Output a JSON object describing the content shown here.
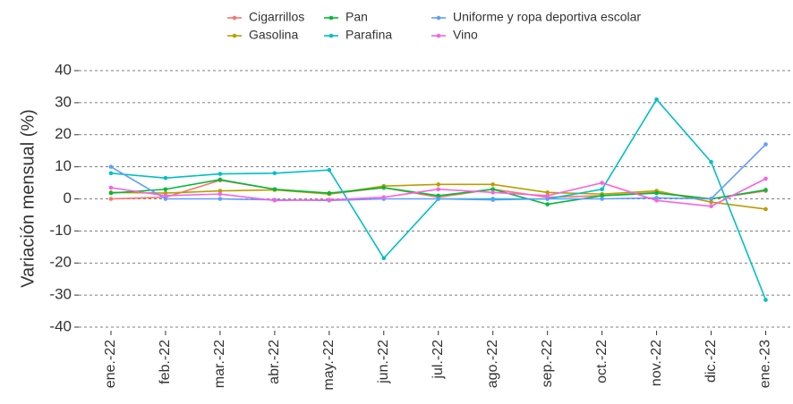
{
  "chart_data": {
    "type": "line",
    "y_label": "Variación mensual (%)",
    "categories": [
      "ene.-22",
      "feb.-22",
      "mar.-22",
      "abr.-22",
      "may.-22",
      "jun.-22",
      "jul.-22",
      "ago.-22",
      "sep.-22",
      "oct.-22",
      "nov.-22",
      "dic.-22",
      "ene.-23"
    ],
    "series": [
      {
        "name": "Cigarrillos",
        "color": "#F8766D",
        "values": [
          0,
          0.5,
          5.8,
          3,
          1.5,
          3.5,
          0.5,
          3,
          0.5,
          1,
          2,
          0,
          2.5
        ]
      },
      {
        "name": "Gasolina",
        "color": "#B79F00",
        "values": [
          2,
          1.8,
          2.5,
          2.8,
          1.5,
          4,
          4.5,
          4.5,
          2,
          1.5,
          2.5,
          -1,
          -3.2
        ]
      },
      {
        "name": "Pan",
        "color": "#00BA38",
        "values": [
          1.8,
          3,
          6,
          3,
          1.8,
          3.5,
          1,
          3,
          -1.7,
          1,
          1.8,
          0,
          2.8
        ]
      },
      {
        "name": "Parafina",
        "color": "#00BFC4",
        "values": [
          8,
          6.5,
          7.8,
          8,
          9,
          -18.5,
          0,
          0,
          0,
          3,
          31,
          11.5,
          -31.5
        ]
      },
      {
        "name": "Uniforme y ropa deportiva escolar",
        "color": "#619CFF",
        "values": [
          10,
          0,
          0,
          -0.3,
          -0.5,
          0,
          0,
          -0.3,
          0,
          0,
          0.3,
          0,
          17
        ]
      },
      {
        "name": "Vino",
        "color": "#F564E3",
        "values": [
          3.5,
          1,
          1.5,
          -0.5,
          -0.3,
          0.5,
          3,
          2,
          1,
          5,
          -0.5,
          -2.3,
          6.3
        ]
      }
    ],
    "ylim": [
      -40,
      40
    ],
    "yticks": [
      -40,
      -30,
      -20,
      -10,
      0,
      10,
      20,
      30,
      40
    ],
    "grid": true,
    "legend": "top"
  }
}
